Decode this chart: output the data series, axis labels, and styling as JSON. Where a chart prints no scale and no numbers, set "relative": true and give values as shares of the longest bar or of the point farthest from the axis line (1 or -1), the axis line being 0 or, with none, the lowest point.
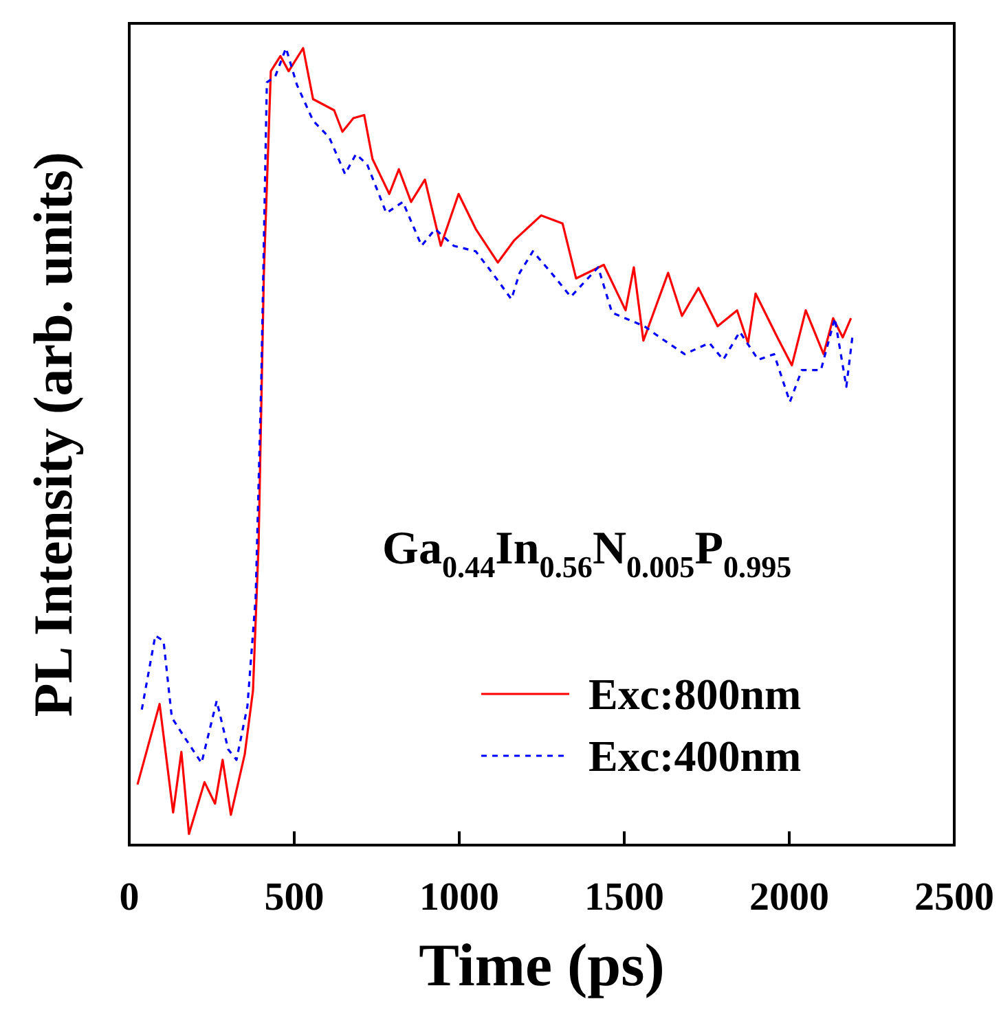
{
  "chart_data": {
    "type": "line",
    "relative": true,
    "xlabel": "Time (ps)",
    "ylabel": "PL Intensity (arb. units)",
    "xlim": [
      0,
      2500
    ],
    "xticks": [
      0,
      500,
      1000,
      1500,
      2000,
      2500
    ],
    "legend": "bottom right",
    "grid": false,
    "annotations": [
      "Ga$_{0.44}$In$_{0.56}$N$_{0.005}$P$_{0.995}$"
    ],
    "series": [
      {
        "name": "Exc:800nm",
        "color": "#ff0000",
        "line_style": "solid",
        "x": [
          25,
          92,
          133,
          158,
          181,
          228,
          260,
          283,
          308,
          350,
          375,
          392,
          408,
          429,
          458,
          483,
          527,
          557,
          621,
          646,
          679,
          712,
          737,
          788,
          817,
          854,
          896,
          944,
          998,
          1050,
          1117,
          1167,
          1248,
          1313,
          1354,
          1438,
          1504,
          1529,
          1558,
          1633,
          1675,
          1725,
          1783,
          1842,
          1875,
          1898,
          1964,
          2008,
          2050,
          2104,
          2133,
          2162,
          2187
        ],
        "values": [
          0.076,
          0.177,
          0.041,
          0.117,
          0.014,
          0.079,
          0.052,
          0.107,
          0.038,
          0.114,
          0.194,
          0.379,
          0.718,
          0.971,
          0.99,
          0.971,
          1.0,
          0.936,
          0.922,
          0.895,
          0.912,
          0.916,
          0.861,
          0.817,
          0.848,
          0.807,
          0.835,
          0.752,
          0.817,
          0.773,
          0.731,
          0.759,
          0.79,
          0.78,
          0.711,
          0.728,
          0.671,
          0.725,
          0.633,
          0.718,
          0.664,
          0.699,
          0.651,
          0.671,
          0.63,
          0.692,
          0.637,
          0.602,
          0.671,
          0.616,
          0.661,
          0.637,
          0.661
        ]
      },
      {
        "name": "Exc:400nm",
        "color": "#0000ff",
        "line_style": "dashed",
        "x": [
          38,
          79,
          104,
          129,
          171,
          219,
          265,
          300,
          325,
          358,
          383,
          400,
          417,
          442,
          475,
          508,
          557,
          606,
          654,
          687,
          721,
          779,
          829,
          886,
          927,
          983,
          1050,
          1100,
          1158,
          1183,
          1223,
          1279,
          1338,
          1421,
          1463,
          1561,
          1608,
          1683,
          1758,
          1800,
          1850,
          1906,
          1954,
          2002,
          2038,
          2096,
          2138,
          2173,
          2192
        ],
        "values": [
          0.17,
          0.263,
          0.256,
          0.16,
          0.133,
          0.103,
          0.181,
          0.12,
          0.107,
          0.174,
          0.31,
          0.582,
          0.957,
          0.964,
          1.0,
          0.954,
          0.909,
          0.888,
          0.842,
          0.867,
          0.854,
          0.793,
          0.807,
          0.752,
          0.773,
          0.752,
          0.745,
          0.718,
          0.685,
          0.718,
          0.745,
          0.718,
          0.688,
          0.725,
          0.668,
          0.651,
          0.637,
          0.616,
          0.63,
          0.609,
          0.644,
          0.609,
          0.616,
          0.556,
          0.596,
          0.596,
          0.661,
          0.575,
          0.64
        ]
      }
    ]
  }
}
